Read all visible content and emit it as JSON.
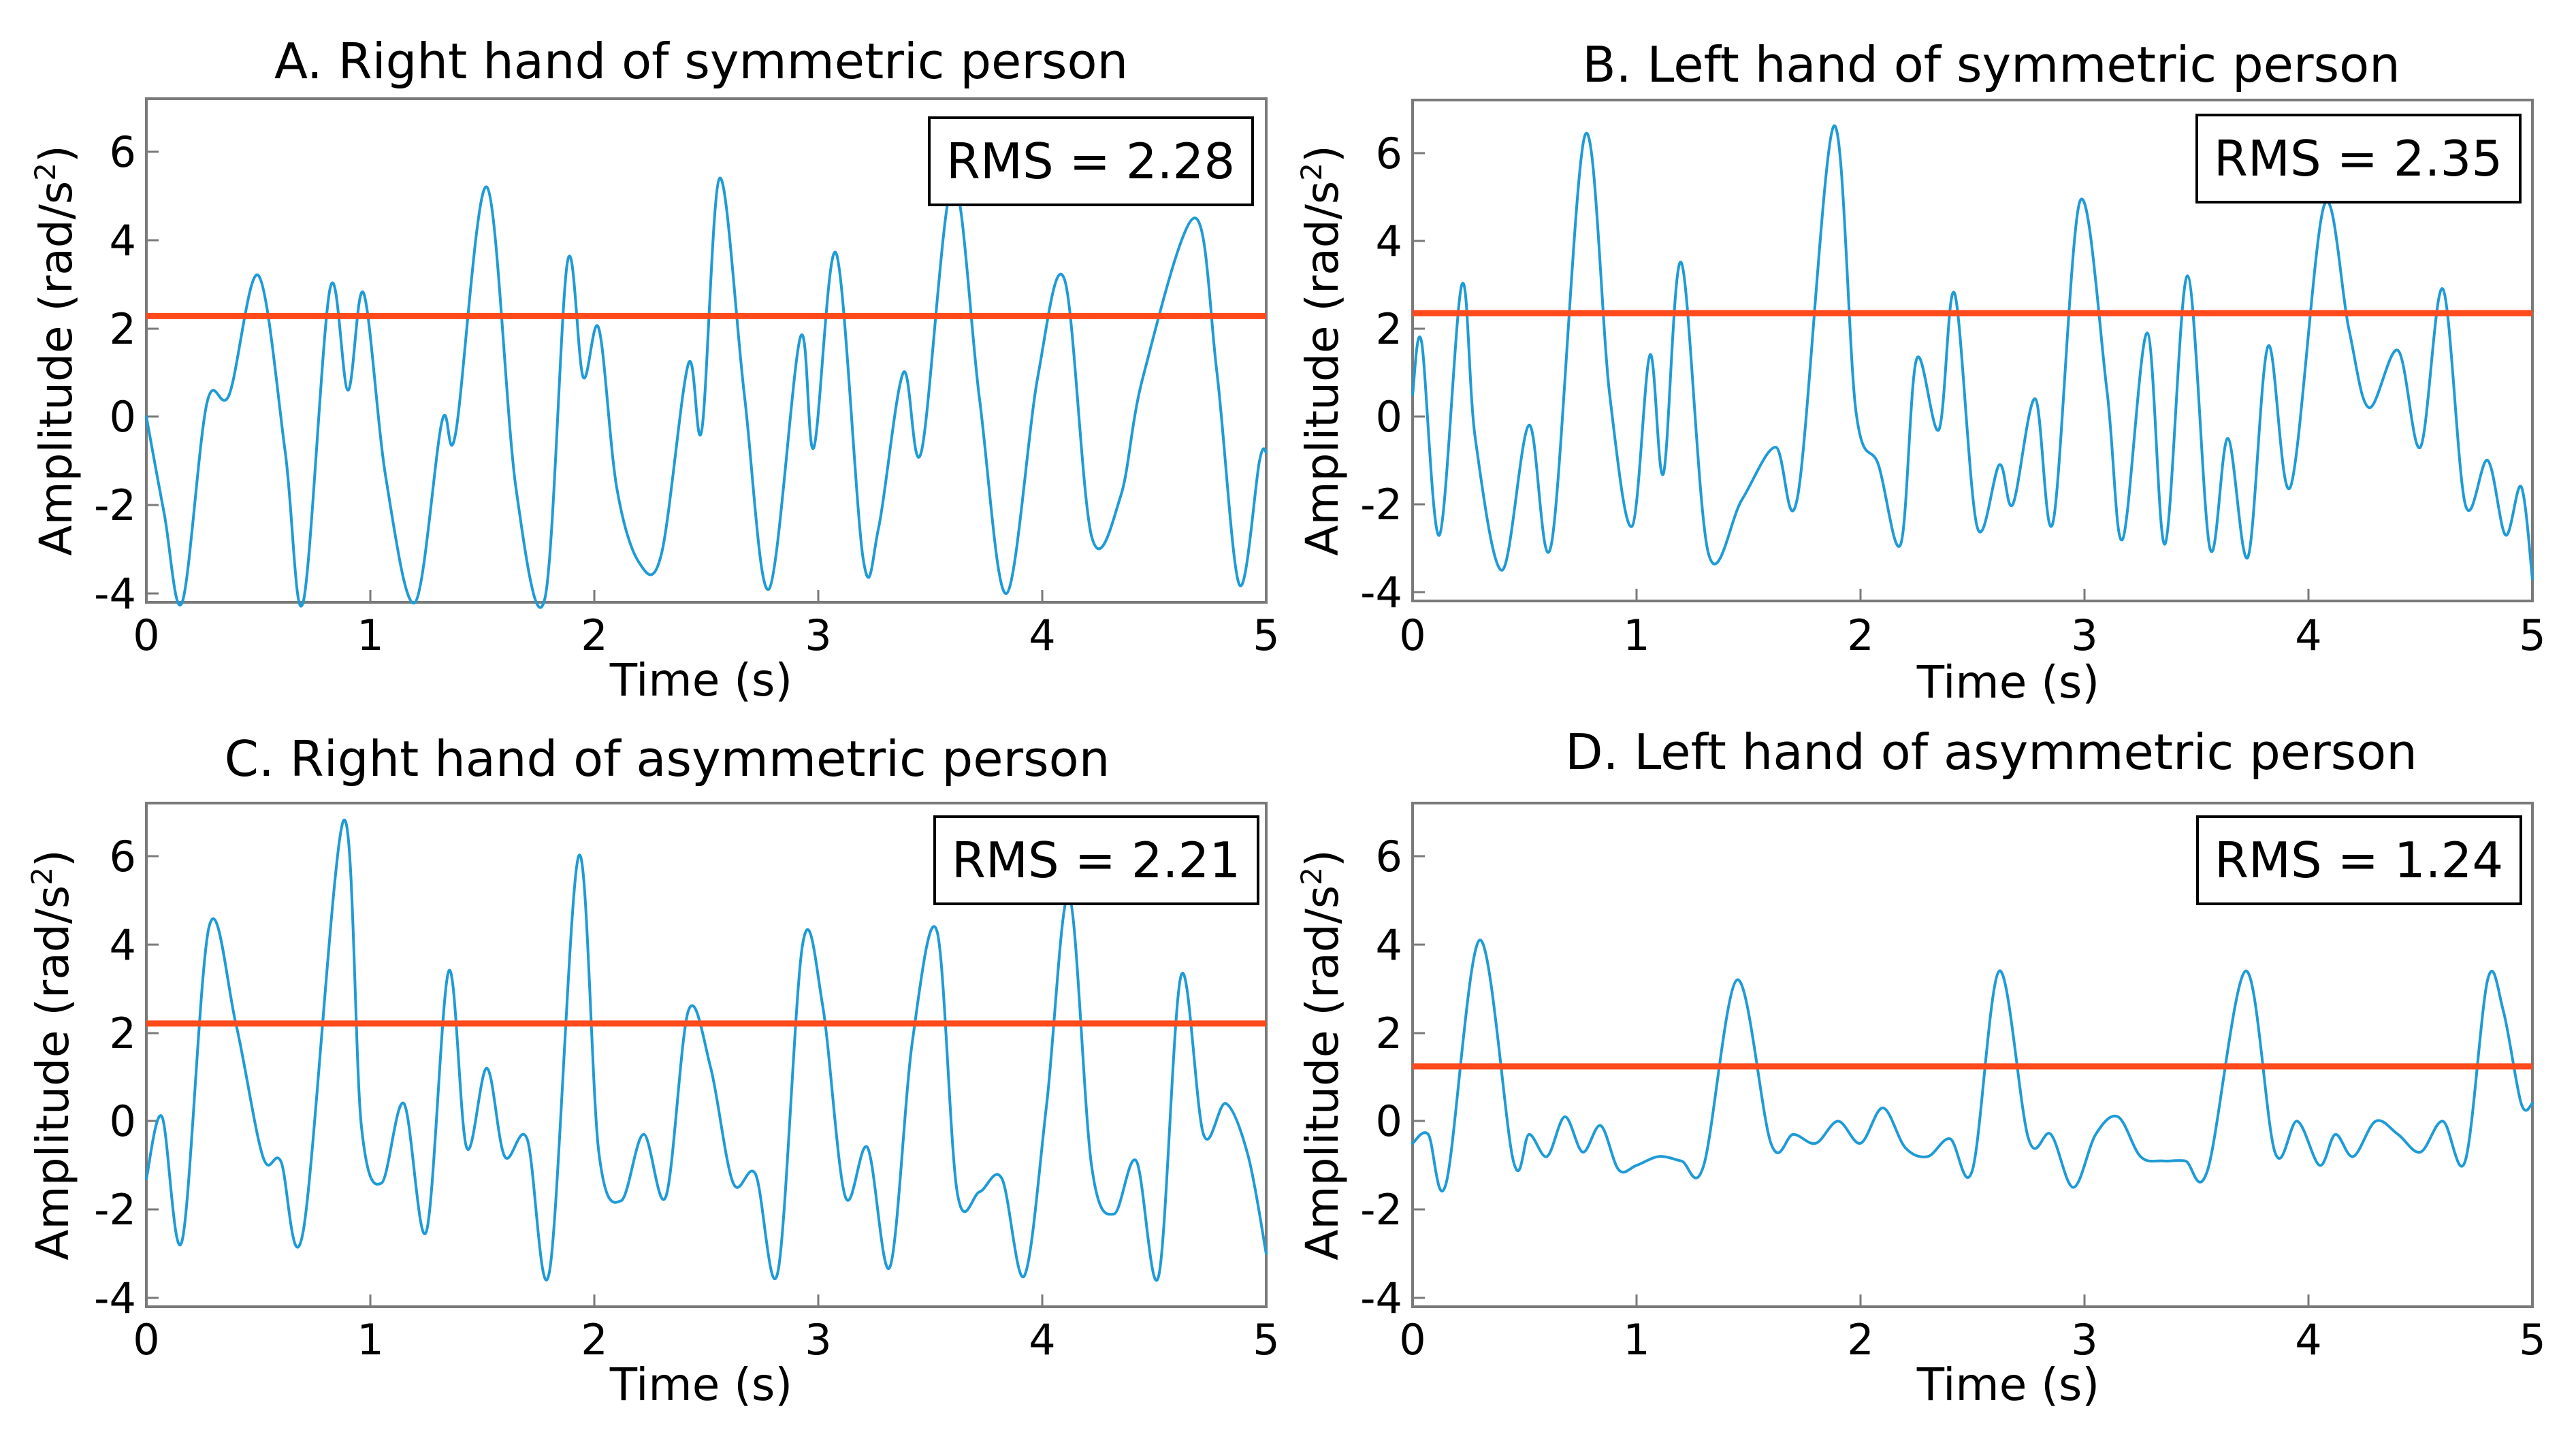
{
  "figure": {
    "x_label": "Time (s)",
    "y_label_main": "Amplitude (rad/s",
    "y_label_sup": "2",
    "y_label_close": ")"
  },
  "chart_data": [
    {
      "type": "line",
      "title": "A. Right hand of symmetric person",
      "xlabel": "Time (s)",
      "ylabel": "Amplitude (rad/s²)",
      "xlim": [
        0,
        5
      ],
      "ylim": [
        -4.2,
        7.2
      ],
      "xticks": [
        "0",
        "1",
        "2",
        "3",
        "4",
        "5"
      ],
      "yticks": [
        "-4",
        "-2",
        "0",
        "2",
        "4",
        "6"
      ],
      "rms_label": "RMS = 2.28",
      "rms": 2.28,
      "series": [
        {
          "name": "Amplitude",
          "x": [
            0,
            0.08,
            0.16,
            0.27,
            0.37,
            0.5,
            0.62,
            0.7,
            0.82,
            0.9,
            0.97,
            1.07,
            1.2,
            1.32,
            1.38,
            1.52,
            1.65,
            1.78,
            1.88,
            1.95,
            2.02,
            2.1,
            2.2,
            2.3,
            2.42,
            2.48,
            2.56,
            2.67,
            2.78,
            2.92,
            2.98,
            3.08,
            3.2,
            3.27,
            3.38,
            3.46,
            3.6,
            3.72,
            3.84,
            3.98,
            4.1,
            4.22,
            4.35,
            4.45,
            4.68,
            4.78,
            4.88,
            4.97,
            5.0
          ],
          "y": [
            0,
            -2.2,
            -4.2,
            0.3,
            0.5,
            3.2,
            -0.8,
            -4.2,
            2.9,
            0.6,
            2.8,
            -1.4,
            -4.2,
            -0.1,
            -0.4,
            5.2,
            -1.6,
            -4.1,
            3.5,
            0.9,
            2.0,
            -1.6,
            -3.3,
            -3.1,
            1.2,
            -0.3,
            5.4,
            0.5,
            -3.9,
            1.8,
            -0.7,
            3.7,
            -3.2,
            -2.5,
            1.0,
            -0.8,
            5.3,
            0.4,
            -4.0,
            0.9,
            3.1,
            -2.7,
            -1.8,
            0.9,
            4.5,
            1.0,
            -3.8,
            -1.0,
            -0.8
          ]
        }
      ]
    },
    {
      "type": "line",
      "title": "B. Left hand of symmetric person",
      "xlabel": "Time (s)",
      "ylabel": "Amplitude (rad/s²)",
      "xlim": [
        0,
        5
      ],
      "ylim": [
        -4.2,
        7.2
      ],
      "xticks": [
        "0",
        "1",
        "2",
        "3",
        "4",
        "5"
      ],
      "yticks": [
        "-4",
        "-2",
        "0",
        "2",
        "4",
        "6"
      ],
      "rms_label": "RMS = 2.35",
      "rms": 2.35,
      "series": [
        {
          "name": "Amplitude",
          "x": [
            0,
            0.04,
            0.12,
            0.22,
            0.28,
            0.4,
            0.52,
            0.62,
            0.77,
            0.88,
            0.98,
            1.06,
            1.12,
            1.2,
            1.32,
            1.47,
            1.62,
            1.72,
            1.88,
            1.98,
            2.08,
            2.18,
            2.25,
            2.35,
            2.42,
            2.52,
            2.62,
            2.68,
            2.78,
            2.86,
            2.98,
            3.1,
            3.17,
            3.28,
            3.36,
            3.46,
            3.56,
            3.64,
            3.73,
            3.82,
            3.92,
            4.07,
            4.18,
            4.27,
            4.4,
            4.5,
            4.6,
            4.7,
            4.8,
            4.88,
            4.95,
            5.0
          ],
          "y": [
            0.5,
            1.7,
            -2.7,
            3.0,
            -0.5,
            -3.5,
            -0.2,
            -2.9,
            6.4,
            0.5,
            -2.5,
            1.4,
            -1.3,
            3.5,
            -3.1,
            -1.9,
            -0.7,
            -1.8,
            6.6,
            0.1,
            -1.1,
            -2.9,
            1.3,
            -0.3,
            2.8,
            -2.5,
            -1.1,
            -2.0,
            0.4,
            -2.4,
            4.9,
            0.6,
            -2.8,
            1.9,
            -2.9,
            3.2,
            -3.0,
            -0.5,
            -3.2,
            1.6,
            -1.6,
            4.8,
            2.0,
            0.2,
            1.5,
            -0.7,
            2.9,
            -2.0,
            -1.0,
            -2.7,
            -1.6,
            -3.7
          ]
        }
      ]
    },
    {
      "type": "line",
      "title": "C. Right hand of asymmetric person",
      "xlabel": "Time (s)",
      "ylabel": "Amplitude (rad/s²)",
      "xlim": [
        0,
        5
      ],
      "ylim": [
        -4.2,
        7.2
      ],
      "xticks": [
        "0",
        "1",
        "2",
        "3",
        "4",
        "5"
      ],
      "yticks": [
        "-4",
        "-2",
        "0",
        "2",
        "4",
        "6"
      ],
      "rms_label": "RMS = 2.21",
      "rms": 2.21,
      "series": [
        {
          "name": "Amplitude",
          "x": [
            0,
            0.07,
            0.16,
            0.28,
            0.4,
            0.52,
            0.6,
            0.7,
            0.88,
            0.96,
            1.05,
            1.15,
            1.25,
            1.35,
            1.43,
            1.52,
            1.6,
            1.7,
            1.8,
            1.93,
            2.02,
            2.12,
            2.22,
            2.32,
            2.42,
            2.52,
            2.62,
            2.72,
            2.82,
            2.93,
            3.02,
            3.12,
            3.22,
            3.32,
            3.42,
            3.53,
            3.62,
            3.72,
            3.82,
            3.92,
            4.02,
            4.12,
            4.22,
            4.32,
            4.42,
            4.52,
            4.62,
            4.72,
            4.82,
            4.92,
            5.0
          ],
          "y": [
            -1.3,
            0.1,
            -2.7,
            4.4,
            2.2,
            -0.8,
            -0.9,
            -2.5,
            6.8,
            -0.1,
            -1.4,
            0.4,
            -2.5,
            3.4,
            -0.6,
            1.2,
            -0.8,
            -0.4,
            -3.4,
            6.0,
            -0.7,
            -1.8,
            -0.3,
            -1.7,
            2.5,
            1.2,
            -1.4,
            -1.2,
            -3.4,
            4.0,
            2.6,
            -1.7,
            -0.6,
            -3.3,
            1.8,
            4.3,
            -1.6,
            -1.6,
            -1.3,
            -3.5,
            0.4,
            5.1,
            -1.0,
            -2.1,
            -0.9,
            -3.5,
            3.3,
            -0.3,
            0.4,
            -0.8,
            -3.0
          ]
        }
      ]
    },
    {
      "type": "line",
      "title": "D. Left hand of asymmetric person",
      "xlabel": "Time (s)",
      "ylabel": "Amplitude (rad/s²)",
      "xlim": [
        0,
        5
      ],
      "ylim": [
        -4.2,
        7.2
      ],
      "xticks": [
        "0",
        "1",
        "2",
        "3",
        "4",
        "5"
      ],
      "yticks": [
        "-4",
        "-2",
        "0",
        "2",
        "4",
        "6"
      ],
      "rms_label": "RMS = 1.24",
      "rms": 1.24,
      "series": [
        {
          "name": "Amplitude",
          "x": [
            0,
            0.07,
            0.15,
            0.3,
            0.45,
            0.52,
            0.6,
            0.68,
            0.76,
            0.84,
            0.92,
            1.0,
            1.1,
            1.2,
            1.3,
            1.45,
            1.6,
            1.7,
            1.8,
            1.9,
            2.0,
            2.1,
            2.2,
            2.3,
            2.4,
            2.5,
            2.62,
            2.75,
            2.85,
            2.95,
            3.05,
            3.15,
            3.25,
            3.35,
            3.45,
            3.55,
            3.72,
            3.85,
            3.95,
            4.05,
            4.12,
            4.2,
            4.3,
            4.4,
            4.5,
            4.6,
            4.7,
            4.8,
            4.87,
            4.95,
            5.0
          ],
          "y": [
            -0.5,
            -0.3,
            -1.4,
            4.1,
            -0.9,
            -0.3,
            -0.8,
            0.1,
            -0.7,
            -0.1,
            -1.1,
            -1.0,
            -0.8,
            -0.9,
            -1.0,
            3.2,
            -0.5,
            -0.3,
            -0.5,
            0.0,
            -0.5,
            0.3,
            -0.6,
            -0.8,
            -0.4,
            -1.1,
            3.4,
            -0.4,
            -0.3,
            -1.5,
            -0.3,
            0.1,
            -0.8,
            -0.9,
            -0.9,
            -1.1,
            3.4,
            -0.7,
            0.0,
            -1.0,
            -0.3,
            -0.8,
            0.0,
            -0.3,
            -0.7,
            0.0,
            -0.9,
            3.2,
            2.5,
            0.4,
            0.4
          ]
        }
      ]
    }
  ]
}
